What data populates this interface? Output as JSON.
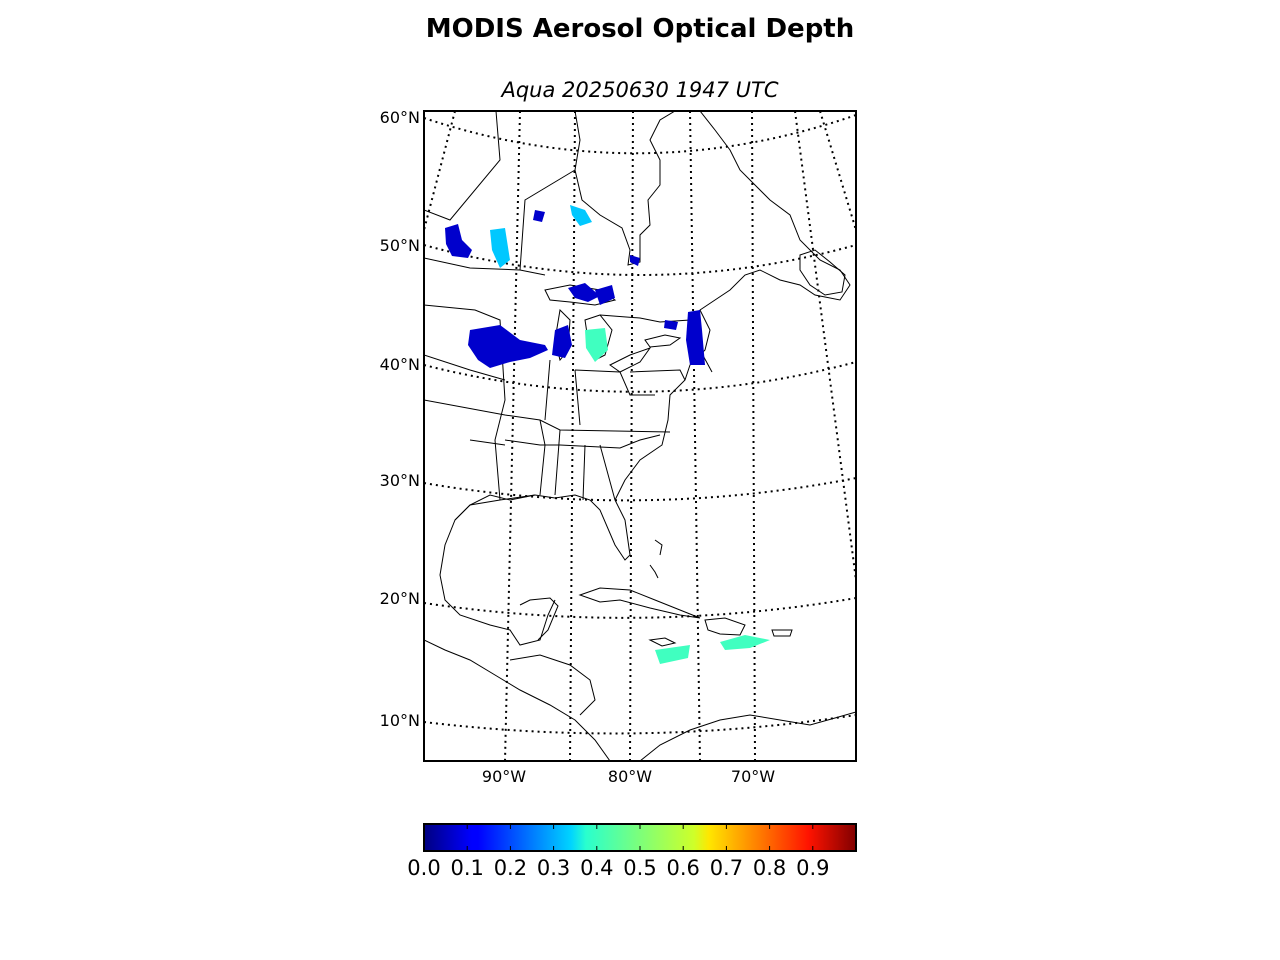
{
  "title": "MODIS Aerosol Optical Depth",
  "subtitle": "Aqua 20250630 1947 UTC",
  "lat_labels": [
    "60°N",
    "50°N",
    "40°N",
    "30°N",
    "20°N",
    "10°N"
  ],
  "lon_labels": [
    "90°W",
    "80°W",
    "70°W"
  ],
  "colorbar": {
    "colormap": "jet",
    "range": [
      0.0,
      1.0
    ],
    "tick_labels": [
      "0.0",
      "0.1",
      "0.2",
      "0.3",
      "0.4",
      "0.5",
      "0.6",
      "0.7",
      "0.8",
      "0.9"
    ]
  },
  "colors": {
    "land_outline": "#000000",
    "aod_low": "#0000cc",
    "aod_mid": "#00c8ff",
    "aod_cyan": "#40ffc0"
  }
}
